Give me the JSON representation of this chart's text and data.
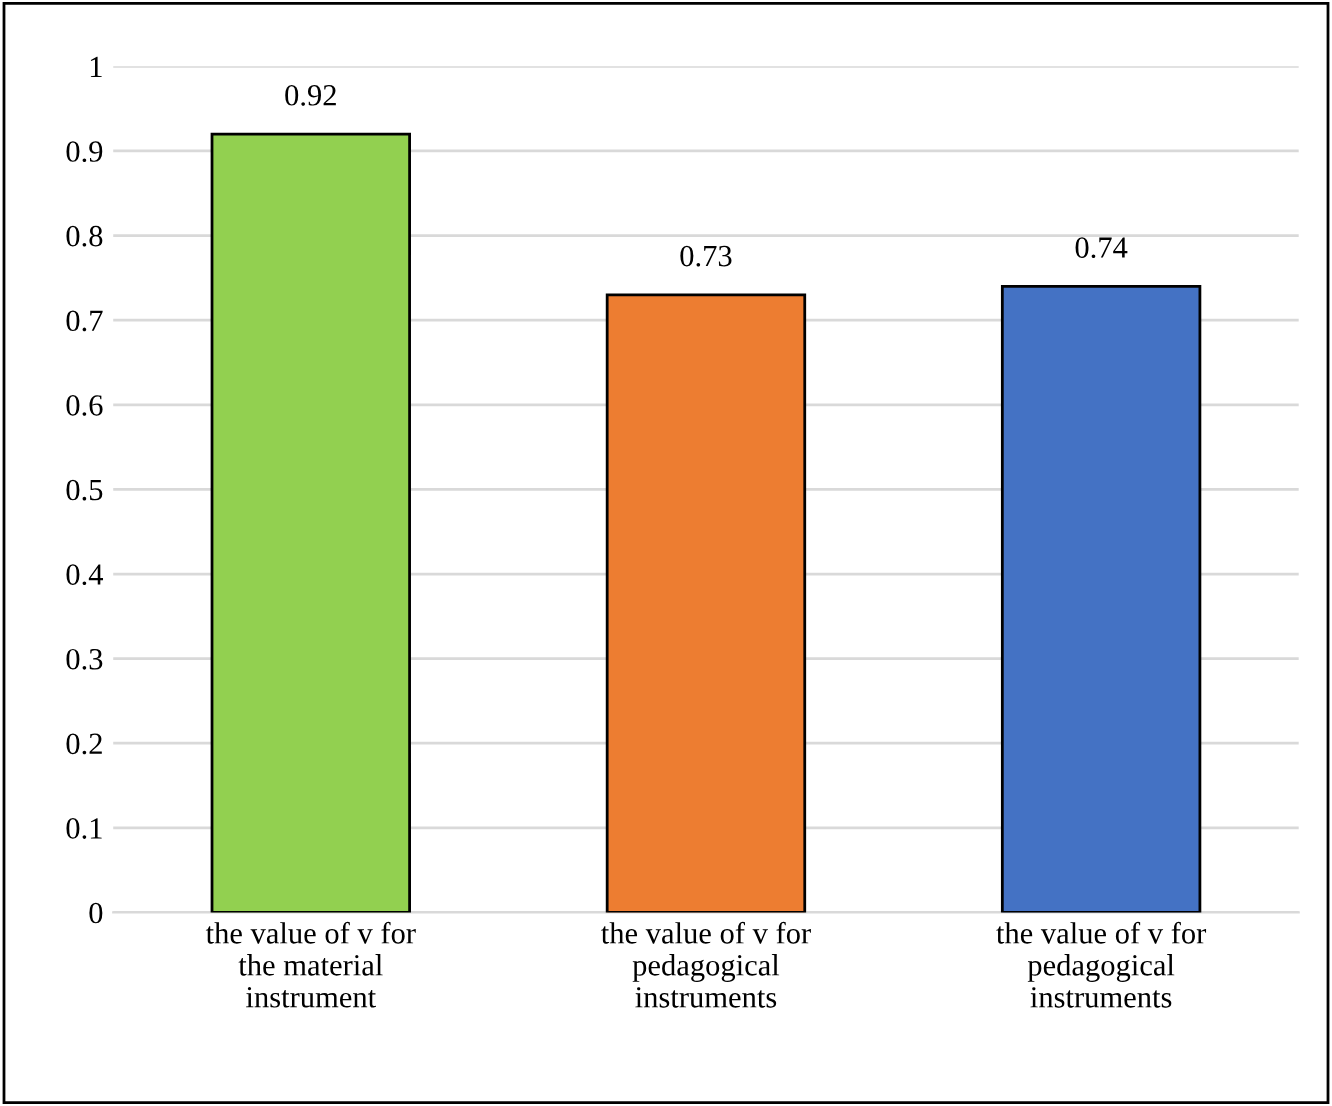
{
  "chart_data": {
    "type": "bar",
    "categories": [
      "the value of v for\nthe material\ninstrument",
      "the value of v for\npedagogical\ninstruments",
      "the value of v for\npedagogical\ninstruments"
    ],
    "values": [
      0.92,
      0.73,
      0.74
    ],
    "colors": [
      "#92d050",
      "#ed7d31",
      "#4472c4"
    ],
    "ylim": [
      0,
      1
    ],
    "yticks": [
      0,
      0.1,
      0.2,
      0.3,
      0.4,
      0.5,
      0.6,
      0.7,
      0.8,
      0.9,
      1
    ],
    "grid": "y",
    "data_labels": true,
    "legend": false
  }
}
